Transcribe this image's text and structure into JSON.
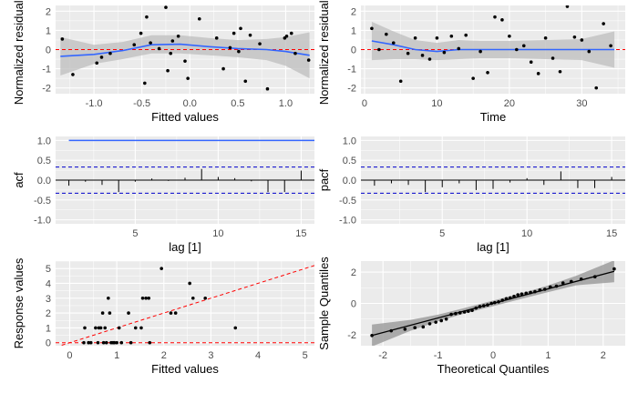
{
  "colors": {
    "panel": "#ebebeb",
    "grid_major": "#ffffff",
    "points": "#000000",
    "smooth": "#3366ff",
    "band": "#bdbdbd",
    "ref_red": "#ff0000",
    "ci_blue": "#0000cc"
  },
  "chart_data": [
    {
      "id": "resid-fitted",
      "type": "scatter",
      "xlabel": "Fitted values",
      "ylabel": "Normalized residuals",
      "xlim": [
        -1.4,
        1.3
      ],
      "ylim": [
        -2.3,
        2.3
      ],
      "xticks": [
        -1.0,
        -0.5,
        0.0,
        0.5,
        1.0
      ],
      "xtick_labels": [
        "-1.0",
        "-0.5",
        "0.0",
        "0.5",
        "1.0"
      ],
      "yticks": [
        -2,
        -1,
        0,
        1,
        2
      ],
      "ytick_labels": [
        "-2",
        "-1",
        "0",
        "1",
        "2"
      ],
      "hline": 0,
      "points": [
        [
          -1.33,
          0.55
        ],
        [
          -1.22,
          -1.3
        ],
        [
          -0.97,
          -0.7
        ],
        [
          -0.92,
          -0.4
        ],
        [
          -0.83,
          -0.2
        ],
        [
          -0.58,
          0.25
        ],
        [
          -0.51,
          0.85
        ],
        [
          -0.47,
          -1.75
        ],
        [
          -0.45,
          1.7
        ],
        [
          -0.41,
          0.35
        ],
        [
          -0.32,
          0.05
        ],
        [
          -0.25,
          2.2
        ],
        [
          -0.23,
          -1.1
        ],
        [
          -0.2,
          -0.2
        ],
        [
          -0.18,
          0.45
        ],
        [
          -0.12,
          0.7
        ],
        [
          -0.05,
          -0.6
        ],
        [
          -0.02,
          -1.5
        ],
        [
          0.1,
          1.6
        ],
        [
          0.28,
          0.6
        ],
        [
          0.35,
          -1.0
        ],
        [
          0.42,
          0.1
        ],
        [
          0.46,
          0.85
        ],
        [
          0.51,
          -0.1
        ],
        [
          0.53,
          1.1
        ],
        [
          0.58,
          -1.65
        ],
        [
          0.63,
          0.75
        ],
        [
          0.73,
          0.3
        ],
        [
          0.81,
          -2.05
        ],
        [
          0.99,
          0.6
        ],
        [
          1.01,
          0.7
        ],
        [
          1.06,
          0.85
        ],
        [
          1.1,
          -0.2
        ],
        [
          1.24,
          -0.55
        ]
      ],
      "smooth": {
        "x": [
          -1.35,
          -1.0,
          -0.7,
          -0.4,
          -0.1,
          0.2,
          0.5,
          0.8,
          1.0,
          1.25
        ],
        "y": [
          -0.35,
          -0.25,
          -0.05,
          0.25,
          0.28,
          0.15,
          0.05,
          0.0,
          -0.1,
          -0.3
        ],
        "lower": [
          -1.35,
          -0.75,
          -0.5,
          -0.2,
          -0.2,
          -0.3,
          -0.4,
          -0.55,
          -0.85,
          -1.5
        ],
        "upper": [
          0.65,
          0.25,
          0.4,
          0.75,
          0.75,
          0.6,
          0.5,
          0.55,
          0.65,
          0.9
        ]
      }
    },
    {
      "id": "resid-time",
      "type": "scatter",
      "xlabel": "Time",
      "ylabel": "Normalized residuals",
      "xlim": [
        -0.5,
        36
      ],
      "ylim": [
        -2.3,
        2.3
      ],
      "xticks": [
        0,
        10,
        20,
        30
      ],
      "xtick_labels": [
        "0",
        "10",
        "20",
        "30"
      ],
      "yticks": [
        -2,
        -1,
        0,
        1,
        2
      ],
      "ytick_labels": [
        "-2",
        "-1",
        "0",
        "1",
        "2"
      ],
      "hline": 0,
      "points": [
        [
          1,
          1.1
        ],
        [
          2,
          0.0
        ],
        [
          3,
          0.8
        ],
        [
          4,
          0.35
        ],
        [
          5,
          -1.65
        ],
        [
          6,
          -0.2
        ],
        [
          7,
          0.6
        ],
        [
          8,
          -0.3
        ],
        [
          9,
          -0.5
        ],
        [
          10,
          0.6
        ],
        [
          11,
          -0.15
        ],
        [
          12,
          0.7
        ],
        [
          13,
          0.05
        ],
        [
          14,
          0.75
        ],
        [
          15,
          -1.5
        ],
        [
          16,
          -0.1
        ],
        [
          17,
          -1.2
        ],
        [
          18,
          1.7
        ],
        [
          19,
          1.55
        ],
        [
          20,
          0.7
        ],
        [
          21,
          0.0
        ],
        [
          22,
          0.2
        ],
        [
          23,
          -0.65
        ],
        [
          24,
          -1.25
        ],
        [
          25,
          0.6
        ],
        [
          26,
          -0.45
        ],
        [
          27,
          -1.15
        ],
        [
          28,
          2.25
        ],
        [
          29,
          0.65
        ],
        [
          30,
          0.5
        ],
        [
          31,
          -0.1
        ],
        [
          32,
          -2.0
        ],
        [
          33,
          1.35
        ],
        [
          34,
          0.2
        ]
      ],
      "smooth": {
        "x": [
          1,
          4,
          7,
          10,
          13,
          16,
          20,
          25,
          30,
          34.5
        ],
        "y": [
          0.45,
          0.25,
          0.0,
          -0.1,
          0.0,
          0.0,
          0.0,
          0.0,
          0.0,
          0.0
        ],
        "lower": [
          -0.55,
          -0.5,
          -0.5,
          -0.55,
          -0.5,
          -0.45,
          -0.45,
          -0.5,
          -0.55,
          -0.95
        ],
        "upper": [
          1.45,
          0.95,
          0.5,
          0.35,
          0.5,
          0.45,
          0.45,
          0.5,
          0.55,
          0.95
        ]
      }
    },
    {
      "id": "acf",
      "type": "bar",
      "xlabel": "lag [1]",
      "ylabel": "acf",
      "xlim": [
        0.2,
        15.8
      ],
      "ylim": [
        -1.1,
        1.1
      ],
      "xticks": [
        5,
        10,
        15
      ],
      "xtick_labels": [
        "5",
        "10",
        "15"
      ],
      "yticks": [
        -1.0,
        -0.5,
        0.0,
        0.5,
        1.0
      ],
      "ytick_labels": [
        "-1.0",
        "-0.5",
        "0.0",
        "0.5",
        "1.0"
      ],
      "ci": 0.33,
      "lags": [
        1,
        2,
        3,
        4,
        5,
        6,
        7,
        8,
        9,
        10,
        11,
        12,
        13,
        14,
        15
      ],
      "values": [
        -0.14,
        -0.04,
        -0.12,
        -0.3,
        -0.04,
        0.04,
        -0.02,
        0.06,
        0.28,
        0.08,
        0.05,
        -0.03,
        -0.3,
        -0.3,
        0.24
      ],
      "hline_at_1": 1.0
    },
    {
      "id": "pacf",
      "type": "bar",
      "xlabel": "lag [1]",
      "ylabel": "pacf",
      "xlim": [
        0.2,
        15.8
      ],
      "ylim": [
        -1.1,
        1.1
      ],
      "xticks": [
        5,
        10,
        15
      ],
      "xtick_labels": [
        "5",
        "10",
        "15"
      ],
      "yticks": [
        -1.0,
        -0.5,
        0.0,
        0.5,
        1.0
      ],
      "ytick_labels": [
        "-1.0",
        "-0.5",
        "0.0",
        "0.5",
        "1.0"
      ],
      "ci": 0.33,
      "lags": [
        1,
        2,
        3,
        4,
        5,
        6,
        7,
        8,
        9,
        10,
        11,
        12,
        13,
        14,
        15
      ],
      "values": [
        -0.14,
        -0.08,
        -0.12,
        -0.3,
        -0.18,
        -0.08,
        -0.25,
        -0.22,
        -0.06,
        0.05,
        -0.12,
        0.22,
        -0.2,
        -0.2,
        0.08
      ]
    },
    {
      "id": "response-fitted",
      "type": "scatter",
      "xlabel": "Fitted values",
      "ylabel": "Response values",
      "xlim": [
        -0.3,
        5.2
      ],
      "ylim": [
        -0.2,
        5.5
      ],
      "xticks": [
        0,
        1,
        2,
        3,
        4,
        5
      ],
      "xtick_labels": [
        "0",
        "1",
        "2",
        "3",
        "4",
        "5"
      ],
      "yticks": [
        0,
        1,
        2,
        3,
        4,
        5
      ],
      "ytick_labels": [
        "0",
        "1",
        "2",
        "3",
        "4",
        "5"
      ],
      "hline": 0,
      "abline": [
        0,
        1
      ],
      "points": [
        [
          0.3,
          0.0
        ],
        [
          0.32,
          1.0
        ],
        [
          0.4,
          0.0
        ],
        [
          0.45,
          0.0
        ],
        [
          0.55,
          1.0
        ],
        [
          0.6,
          0.0
        ],
        [
          0.62,
          1.0
        ],
        [
          0.66,
          1.0
        ],
        [
          0.7,
          2.0
        ],
        [
          0.72,
          0.0
        ],
        [
          0.75,
          1.0
        ],
        [
          0.78,
          0.0
        ],
        [
          0.82,
          3.0
        ],
        [
          0.85,
          2.0
        ],
        [
          0.88,
          0.0
        ],
        [
          0.92,
          0.0
        ],
        [
          0.95,
          0.0
        ],
        [
          1.0,
          0.0
        ],
        [
          1.05,
          1.0
        ],
        [
          1.1,
          0.0
        ],
        [
          1.25,
          2.0
        ],
        [
          1.3,
          0.0
        ],
        [
          1.4,
          1.0
        ],
        [
          1.52,
          1.0
        ],
        [
          1.55,
          3.0
        ],
        [
          1.62,
          3.0
        ],
        [
          1.68,
          3.0
        ],
        [
          1.7,
          0.0
        ],
        [
          1.95,
          5.0
        ],
        [
          2.15,
          2.0
        ],
        [
          2.25,
          2.0
        ],
        [
          2.55,
          4.0
        ],
        [
          2.62,
          3.0
        ],
        [
          2.88,
          3.0
        ],
        [
          3.52,
          1.0
        ]
      ]
    },
    {
      "id": "qq",
      "type": "scatter",
      "xlabel": "Theoretical Quantiles",
      "ylabel": "Sample Quantiles",
      "xlim": [
        -2.4,
        2.4
      ],
      "ylim": [
        -2.7,
        2.7
      ],
      "xticks": [
        -2,
        -1,
        0,
        1,
        2
      ],
      "xtick_labels": [
        "-2",
        "-1",
        "0",
        "1",
        "2"
      ],
      "yticks": [
        -2,
        0,
        2
      ],
      "ytick_labels": [
        "-2",
        "0",
        "2"
      ],
      "qq_points": [
        [
          -2.2,
          -2.05
        ],
        [
          -1.85,
          -1.75
        ],
        [
          -1.6,
          -1.65
        ],
        [
          -1.42,
          -1.55
        ],
        [
          -1.27,
          -1.5
        ],
        [
          -1.15,
          -1.3
        ],
        [
          -1.04,
          -1.2
        ],
        [
          -0.94,
          -1.1
        ],
        [
          -0.85,
          -1.0
        ],
        [
          -0.76,
          -0.7
        ],
        [
          -0.68,
          -0.65
        ],
        [
          -0.6,
          -0.6
        ],
        [
          -0.52,
          -0.55
        ],
        [
          -0.45,
          -0.5
        ],
        [
          -0.38,
          -0.45
        ],
        [
          -0.31,
          -0.3
        ],
        [
          -0.24,
          -0.2
        ],
        [
          -0.17,
          -0.15
        ],
        [
          -0.1,
          -0.1
        ],
        [
          -0.03,
          0.0
        ],
        [
          0.03,
          0.05
        ],
        [
          0.1,
          0.1
        ],
        [
          0.17,
          0.2
        ],
        [
          0.24,
          0.3
        ],
        [
          0.31,
          0.35
        ],
        [
          0.38,
          0.45
        ],
        [
          0.45,
          0.55
        ],
        [
          0.52,
          0.6
        ],
        [
          0.6,
          0.65
        ],
        [
          0.68,
          0.7
        ],
        [
          0.76,
          0.75
        ],
        [
          0.85,
          0.85
        ],
        [
          0.94,
          0.9
        ],
        [
          1.04,
          1.05
        ],
        [
          1.15,
          1.1
        ],
        [
          1.27,
          1.3
        ],
        [
          1.42,
          1.4
        ],
        [
          1.6,
          1.55
        ],
        [
          1.85,
          1.7
        ],
        [
          2.2,
          2.2
        ]
      ],
      "qq_line": [
        [
          -2.2,
          -2.05
        ],
        [
          2.2,
          2.05
        ]
      ],
      "band": {
        "x": [
          -2.2,
          -1.5,
          -1.0,
          -0.5,
          0.0,
          0.5,
          1.0,
          1.5,
          2.2
        ],
        "lower": [
          -2.75,
          -1.75,
          -1.15,
          -0.62,
          -0.18,
          0.28,
          0.72,
          1.15,
          1.35
        ],
        "upper": [
          -1.35,
          -1.05,
          -0.72,
          -0.28,
          0.18,
          0.62,
          1.15,
          1.75,
          2.75
        ]
      }
    }
  ]
}
